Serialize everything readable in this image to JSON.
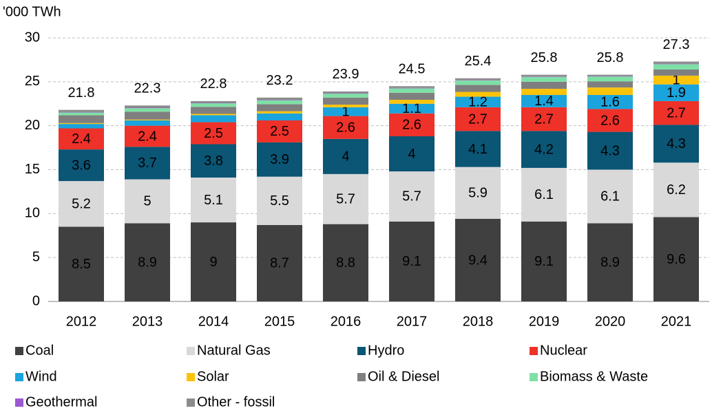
{
  "chart_data": {
    "type": "stacked_bar",
    "y_axis_label": "'000 TWh",
    "categories": [
      "2012",
      "2013",
      "2014",
      "2015",
      "2016",
      "2017",
      "2018",
      "2019",
      "2020",
      "2021"
    ],
    "series": [
      {
        "name": "Coal",
        "color": "#404040",
        "values": [
          8.5,
          8.9,
          9.0,
          8.7,
          8.8,
          9.1,
          9.4,
          9.1,
          8.9,
          9.6
        ]
      },
      {
        "name": "Natural Gas",
        "color": "#d9d9d9",
        "values": [
          5.2,
          5.0,
          5.1,
          5.5,
          5.7,
          5.7,
          5.9,
          6.1,
          6.1,
          6.2
        ]
      },
      {
        "name": "Hydro",
        "color": "#0b5575",
        "values": [
          3.6,
          3.7,
          3.8,
          3.9,
          4.0,
          4.0,
          4.1,
          4.2,
          4.3,
          4.3
        ]
      },
      {
        "name": "Nuclear",
        "color": "#ee3129",
        "values": [
          2.4,
          2.4,
          2.5,
          2.5,
          2.6,
          2.6,
          2.7,
          2.7,
          2.6,
          2.7
        ]
      },
      {
        "name": "Wind",
        "color": "#1aa3dc",
        "values": [
          0.5,
          0.6,
          0.8,
          0.8,
          1.0,
          1.1,
          1.2,
          1.4,
          1.6,
          1.9
        ]
      },
      {
        "name": "Solar",
        "color": "#fcc30b",
        "values": [
          0.1,
          0.1,
          0.15,
          0.25,
          0.3,
          0.45,
          0.55,
          0.7,
          0.85,
          1.0
        ]
      },
      {
        "name": "Oil & Diesel",
        "color": "#7f7f7f",
        "values": [
          0.9,
          0.9,
          0.8,
          0.8,
          0.8,
          0.8,
          0.8,
          0.8,
          0.7,
          0.7
        ]
      },
      {
        "name": "Biomass & Waste",
        "color": "#7fe0a6",
        "values": [
          0.3,
          0.4,
          0.4,
          0.45,
          0.45,
          0.5,
          0.5,
          0.55,
          0.55,
          0.6
        ]
      },
      {
        "name": "Geothermal",
        "color": "#9b59d0",
        "values": [
          0.05,
          0.05,
          0.05,
          0.05,
          0.05,
          0.05,
          0.05,
          0.05,
          0.05,
          0.05
        ]
      },
      {
        "name": "Other - fossil",
        "color": "#8c8c8c",
        "values": [
          0.25,
          0.25,
          0.2,
          0.25,
          0.2,
          0.2,
          0.2,
          0.2,
          0.15,
          0.25
        ]
      }
    ],
    "totals": [
      21.8,
      22.3,
      22.8,
      23.2,
      23.9,
      24.5,
      25.4,
      25.8,
      25.8,
      27.3
    ],
    "ylim": [
      0,
      30
    ],
    "yticks": [
      0,
      5,
      10,
      15,
      20,
      25,
      30
    ],
    "grid": true,
    "legend": "bottom"
  }
}
